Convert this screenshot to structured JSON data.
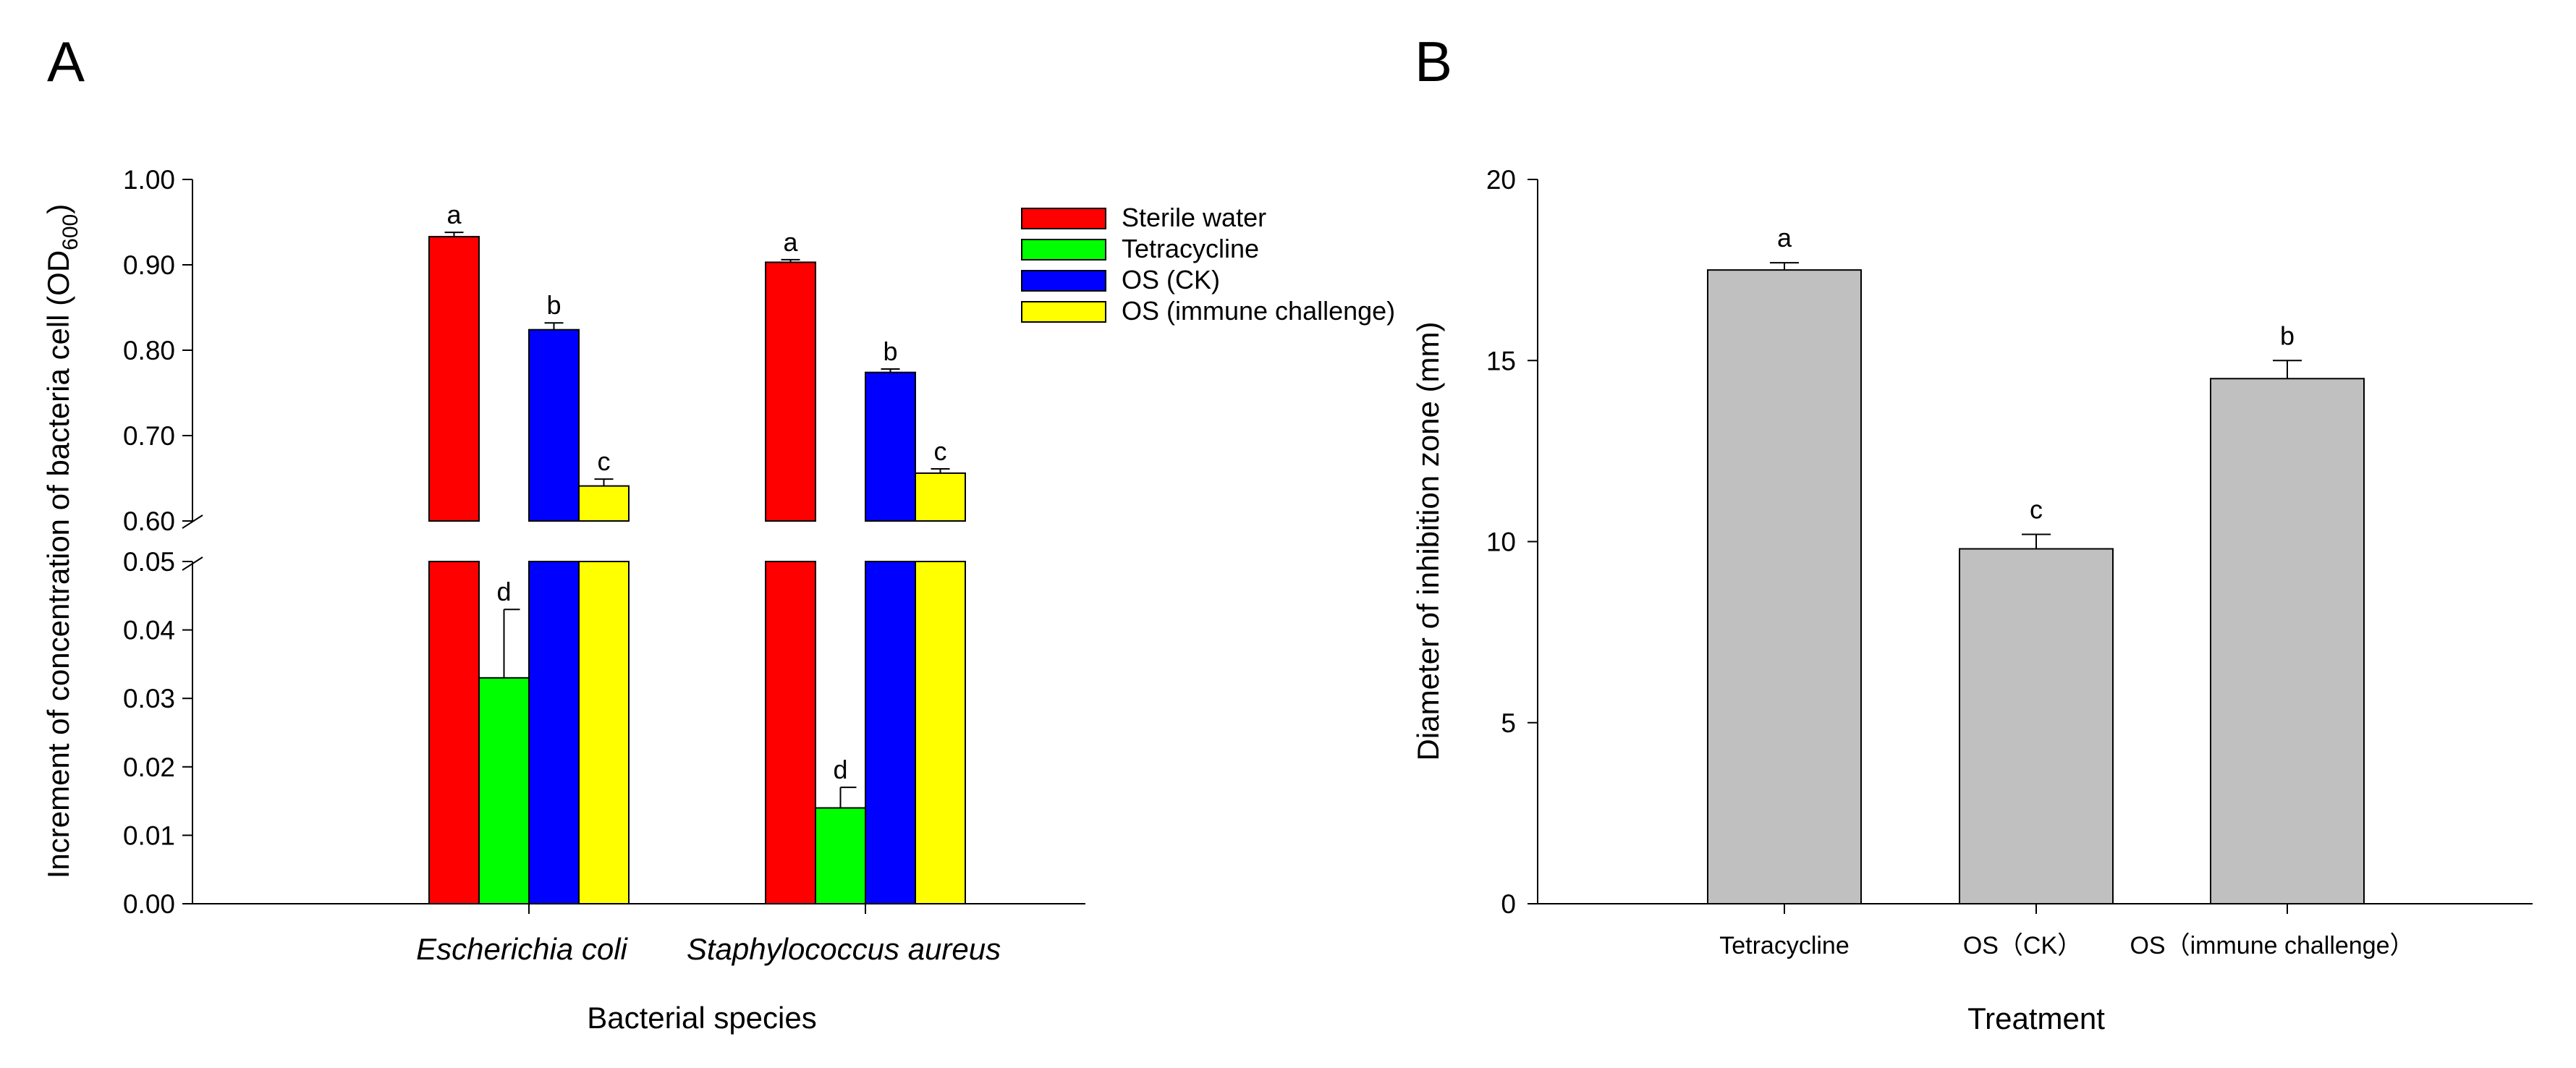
{
  "panel_labels": {
    "a": "A",
    "b": "B"
  },
  "chart_data": [
    {
      "type": "bar",
      "panel": "A",
      "title": "",
      "xlabel": "Bacterial species",
      "ylabel_main": "Increment of concentration of bacteria cell (OD",
      "ylabel_sub": "600",
      "ylabel_close": ")",
      "categories": [
        "Escherichia coli",
        "Staphylococcus aureus"
      ],
      "axis_break": {
        "lower_range": [
          0,
          0.05
        ],
        "upper_range": [
          0.6,
          1.0
        ]
      },
      "lower_ticks": [
        "0.00",
        "0.01",
        "0.02",
        "0.03",
        "0.04",
        "0.05"
      ],
      "upper_ticks": [
        "0.60",
        "0.70",
        "0.80",
        "0.90",
        "1.00"
      ],
      "legend_position": "top-right",
      "series": [
        {
          "name": "Sterile water",
          "color": "#ff0000",
          "values": [
            0.933,
            0.903
          ],
          "errors": [
            0.005,
            0.003
          ],
          "labels": [
            "a",
            "a"
          ]
        },
        {
          "name": "Tetracycline",
          "color": "#00ff00",
          "values": [
            0.033,
            0.014
          ],
          "errors": [
            0.01,
            0.003
          ],
          "labels": [
            "d",
            "d"
          ]
        },
        {
          "name": "OS (CK)",
          "color": "#0000ff",
          "values": [
            0.824,
            0.774
          ],
          "errors": [
            0.008,
            0.004
          ],
          "labels": [
            "b",
            "b"
          ]
        },
        {
          "name": "OS (immune challenge)",
          "color": "#ffff00",
          "values": [
            0.641,
            0.656
          ],
          "errors": [
            0.008,
            0.005
          ],
          "labels": [
            "c",
            "c"
          ]
        }
      ]
    },
    {
      "type": "bar",
      "panel": "B",
      "title": "",
      "xlabel": "Treatment",
      "ylabel": "Diameter of inhibition zone (mm)",
      "categories": [
        "Tetracycline",
        "OS（CK）",
        "OS（immune challenge）"
      ],
      "values": [
        17.5,
        9.8,
        14.5
      ],
      "errors": [
        0.2,
        0.4,
        0.5
      ],
      "labels": [
        "a",
        "c",
        "b"
      ],
      "ylim": [
        0,
        20
      ],
      "yticks": [
        "0",
        "5",
        "10",
        "15",
        "20"
      ],
      "bar_color": "#c0c0c0"
    }
  ]
}
